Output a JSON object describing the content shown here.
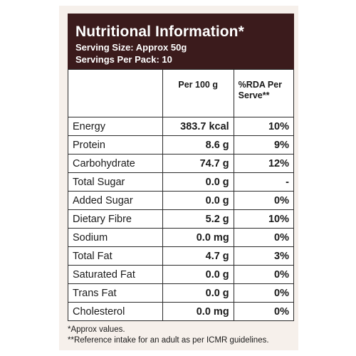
{
  "header": {
    "title": "Nutritional Information*",
    "serving_size": "Serving Size: Approx 50g",
    "servings_per_pack": "Servings Per Pack: 10"
  },
  "table": {
    "col_per100g": "Per 100 g",
    "col_rda_line1": "%RDA Per",
    "col_rda_line2": "Serve**",
    "rows": [
      {
        "nutrient": "Energy",
        "per100g": "383.7 kcal",
        "rda": "10%"
      },
      {
        "nutrient": "Protein",
        "per100g": "8.6 g",
        "rda": "9%"
      },
      {
        "nutrient": "Carbohydrate",
        "per100g": "74.7 g",
        "rda": "12%"
      },
      {
        "nutrient": "Total Sugar",
        "per100g": "0.0 g",
        "rda": "-"
      },
      {
        "nutrient": "Added Sugar",
        "per100g": "0.0 g",
        "rda": "0%"
      },
      {
        "nutrient": "Dietary Fibre",
        "per100g": "5.2 g",
        "rda": "10%"
      },
      {
        "nutrient": "Sodium",
        "per100g": "0.0 mg",
        "rda": "0%"
      },
      {
        "nutrient": "Total Fat",
        "per100g": "4.7 g",
        "rda": "3%"
      },
      {
        "nutrient": "Saturated Fat",
        "per100g": "0.0 g",
        "rda": "0%"
      },
      {
        "nutrient": "Trans Fat",
        "per100g": "0.0 g",
        "rda": "0%"
      },
      {
        "nutrient": "Cholesterol",
        "per100g": "0.0 mg",
        "rda": "0%"
      }
    ]
  },
  "footnotes": {
    "approx": "*Approx values.",
    "reference": "**Reference intake for an adult as per ICMR guidelines."
  },
  "colors": {
    "header_bg": "#3b1b1c",
    "panel_bg": "#f6f0eb"
  }
}
